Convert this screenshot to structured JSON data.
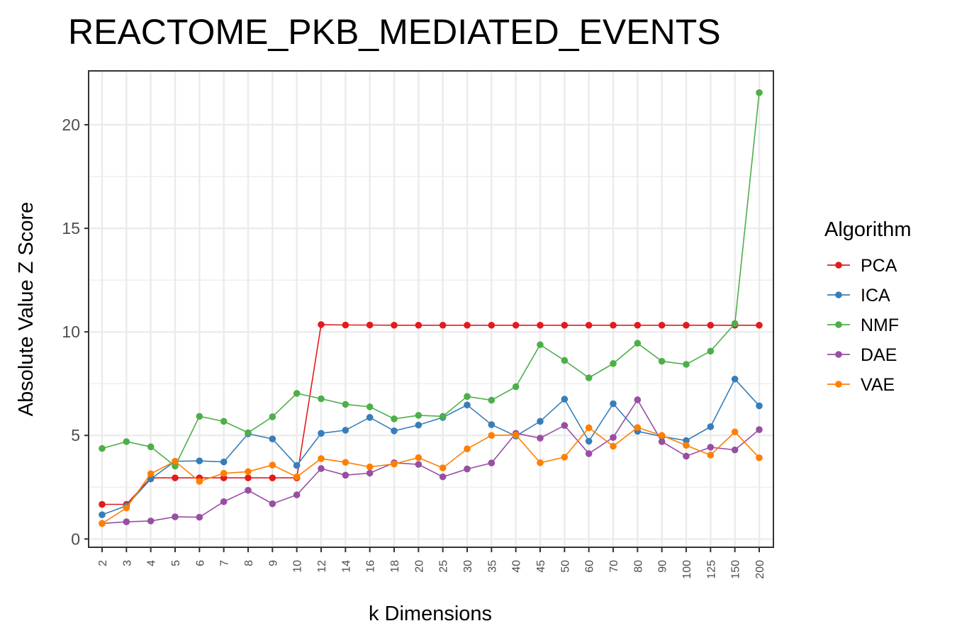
{
  "chart_data": {
    "type": "line",
    "title": "REACTOME_PKB_MEDIATED_EVENTS",
    "xlabel": "k Dimensions",
    "ylabel": "Absolute Value Z Score",
    "categories": [
      "2",
      "3",
      "4",
      "5",
      "6",
      "7",
      "8",
      "9",
      "10",
      "12",
      "14",
      "16",
      "18",
      "20",
      "25",
      "30",
      "35",
      "40",
      "45",
      "50",
      "60",
      "70",
      "80",
      "90",
      "100",
      "125",
      "150",
      "200"
    ],
    "ylim": [
      -0.4,
      22.6
    ],
    "yticks": [
      0,
      5,
      10,
      15,
      20
    ],
    "grid": true,
    "legend": {
      "title": "Algorithm",
      "position": "right"
    },
    "series": [
      {
        "name": "PCA",
        "color": "#e41a1c",
        "values": [
          1.67,
          1.67,
          2.95,
          2.95,
          2.95,
          2.95,
          2.95,
          2.95,
          2.95,
          10.35,
          10.33,
          10.33,
          10.32,
          10.32,
          10.32,
          10.32,
          10.32,
          10.32,
          10.32,
          10.32,
          10.32,
          10.32,
          10.32,
          10.32,
          10.32,
          10.32,
          10.32,
          10.32
        ]
      },
      {
        "name": "ICA",
        "color": "#377eb8",
        "values": [
          1.17,
          1.6,
          2.9,
          3.75,
          3.77,
          3.72,
          5.08,
          4.83,
          3.55,
          5.1,
          5.25,
          5.87,
          5.22,
          5.5,
          5.87,
          6.47,
          5.52,
          4.97,
          5.68,
          6.75,
          4.72,
          6.53,
          5.2,
          4.95,
          4.75,
          5.42,
          7.72,
          6.43
        ]
      },
      {
        "name": "NMF",
        "color": "#4daf4a",
        "values": [
          4.37,
          4.7,
          4.45,
          3.52,
          5.92,
          5.68,
          5.13,
          5.9,
          7.03,
          6.77,
          6.5,
          6.38,
          5.8,
          5.97,
          5.92,
          6.88,
          6.7,
          7.35,
          9.38,
          8.62,
          7.78,
          8.47,
          9.45,
          8.58,
          8.43,
          9.07,
          10.4,
          21.55
        ]
      },
      {
        "name": "DAE",
        "color": "#984ea3",
        "values": [
          0.75,
          0.83,
          0.87,
          1.07,
          1.05,
          1.8,
          2.35,
          1.7,
          2.13,
          3.4,
          3.08,
          3.18,
          3.68,
          3.6,
          3.0,
          3.38,
          3.67,
          5.1,
          4.87,
          5.48,
          4.12,
          4.9,
          6.72,
          4.7,
          4.0,
          4.43,
          4.3,
          5.28
        ]
      },
      {
        "name": "VAE",
        "color": "#ff7f00",
        "values": [
          0.75,
          1.5,
          3.15,
          3.75,
          2.78,
          3.17,
          3.25,
          3.57,
          3.0,
          3.88,
          3.7,
          3.48,
          3.62,
          3.93,
          3.43,
          4.35,
          5.0,
          5.02,
          3.68,
          3.95,
          5.37,
          4.48,
          5.38,
          5.0,
          4.52,
          4.05,
          5.17,
          3.92
        ]
      }
    ]
  }
}
